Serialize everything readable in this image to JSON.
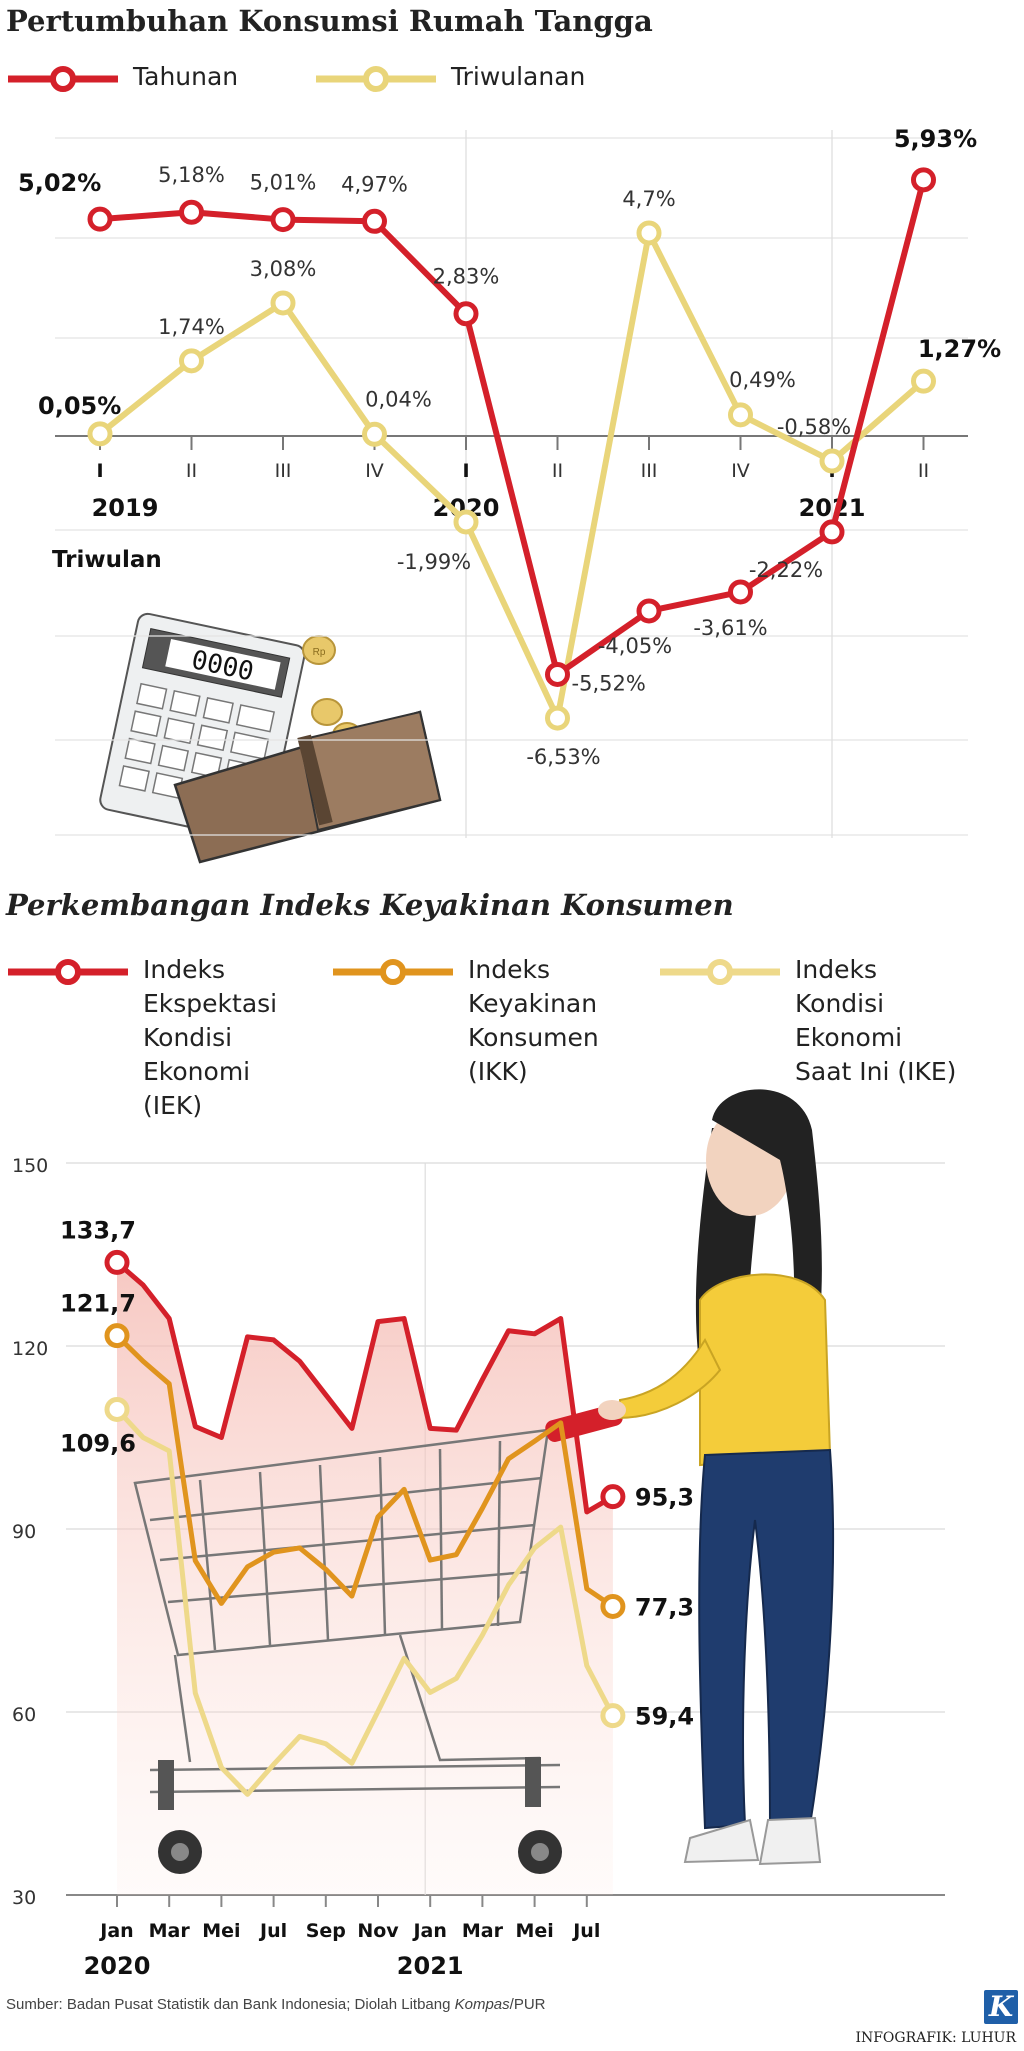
{
  "chart_data": [
    {
      "type": "line",
      "title": "Pertumbuhan Konsumsi Rumah Tangga",
      "xlabel": "Triwulan",
      "categories": [
        "I",
        "II",
        "III",
        "IV",
        "I",
        "II",
        "III",
        "IV",
        "I",
        "II"
      ],
      "years": [
        {
          "label": "2019",
          "index": 0
        },
        {
          "label": "2020",
          "index": 4
        },
        {
          "label": "2021",
          "index": 8
        }
      ],
      "legend_position": "top",
      "ylim": [
        -7.5,
        6.5
      ],
      "series": [
        {
          "name": "Tahunan",
          "color": "#d4202a",
          "values": [
            5.02,
            5.18,
            5.01,
            4.97,
            2.83,
            -5.52,
            -4.05,
            -3.61,
            -2.22,
            5.93
          ],
          "labels": [
            "5,02%",
            "5,18%",
            "5,01%",
            "4,97%",
            "2,83%",
            "-5,52%",
            "-4,05%",
            "-3,61%",
            "-2,22%",
            "5,93%"
          ]
        },
        {
          "name": "Triwulanan",
          "color": "#e9d57a",
          "values": [
            0.05,
            1.74,
            3.08,
            0.04,
            -1.99,
            -6.53,
            4.7,
            0.49,
            -0.58,
            1.27
          ],
          "labels": [
            "0,05%",
            "1,74%",
            "3,08%",
            "0,04%",
            "-1,99%",
            "-6,53%",
            "4,7%",
            "0,49%",
            "-0,58%",
            "1,27%"
          ]
        }
      ]
    },
    {
      "type": "line",
      "title": "Perkembangan Indeks Keyakinan Konsumen",
      "xlabel": "",
      "ylabel": "",
      "ylim": [
        30,
        150
      ],
      "yticks": [
        30,
        60,
        90,
        120,
        150
      ],
      "legend_position": "top",
      "x_ticks": [
        {
          "label": "Jan",
          "index": 0
        },
        {
          "label": "Mar",
          "index": 2
        },
        {
          "label": "Mei",
          "index": 4
        },
        {
          "label": "Jul",
          "index": 6
        },
        {
          "label": "Sep",
          "index": 8
        },
        {
          "label": "Nov",
          "index": 10
        },
        {
          "label": "Jan",
          "index": 12
        },
        {
          "label": "Mar",
          "index": 14
        },
        {
          "label": "Mei",
          "index": 16
        },
        {
          "label": "Jul",
          "index": 18
        }
      ],
      "years": [
        {
          "label": "2020",
          "index": 0
        },
        {
          "label": "2021",
          "index": 12
        }
      ],
      "series": [
        {
          "name": "Indeks Ekspektasi Kondisi Ekonomi (IEK)",
          "legend_lines": [
            "Indeks",
            "Ekspektasi",
            "Kondisi",
            "Ekonomi",
            "(IEK)"
          ],
          "color": "#d4202a",
          "values": [
            133.7,
            130,
            124.5,
            106.8,
            105,
            121.5,
            121,
            117.5,
            112,
            106.5,
            124,
            124.5,
            106.5,
            106.2,
            114.5,
            122.5,
            122,
            124.5,
            92.8,
            95.3
          ],
          "first_label": "133,7",
          "last_label": "95,3"
        },
        {
          "name": "Indeks Keyakinan Konsumen (IKK)",
          "legend_lines": [
            "Indeks",
            "Keyakinan",
            "Konsumen",
            "(IKK)"
          ],
          "color": "#e0941e",
          "values": [
            121.7,
            117.5,
            113.8,
            84.8,
            77.8,
            83.8,
            86.2,
            86.9,
            83.4,
            79.0,
            92.0,
            96.5,
            84.9,
            85.8,
            93.4,
            101.5,
            104.4,
            107.4,
            80.2,
            77.3
          ],
          "first_label": "121,7",
          "last_label": "77,3"
        },
        {
          "name": "Indeks Kondisi Ekonomi Saat Ini (IKE)",
          "legend_lines": [
            "Indeks",
            "Kondisi",
            "Ekonomi",
            "Saat Ini (IKE)"
          ],
          "color": "#eed98a",
          "values": [
            109.6,
            105,
            102.8,
            63.1,
            50.9,
            46.5,
            51.4,
            56.0,
            54.8,
            51.6,
            60.1,
            68.8,
            63.2,
            65.5,
            72.6,
            80.8,
            86.9,
            90.3,
            67.6,
            59.4
          ],
          "first_label": "109,6",
          "last_label": "59,4"
        }
      ]
    }
  ],
  "footer": {
    "source_prefix": "Sumber: Badan Pusat Statistik dan Bank Indonesia; Diolah Litbang ",
    "source_italic": "Kompas",
    "source_suffix": "/PUR",
    "credit": "INFOGRAFIK: LUHUR",
    "logo": "K"
  },
  "illustration": {
    "calculator_display": "0000",
    "coin_text": "Rp"
  }
}
